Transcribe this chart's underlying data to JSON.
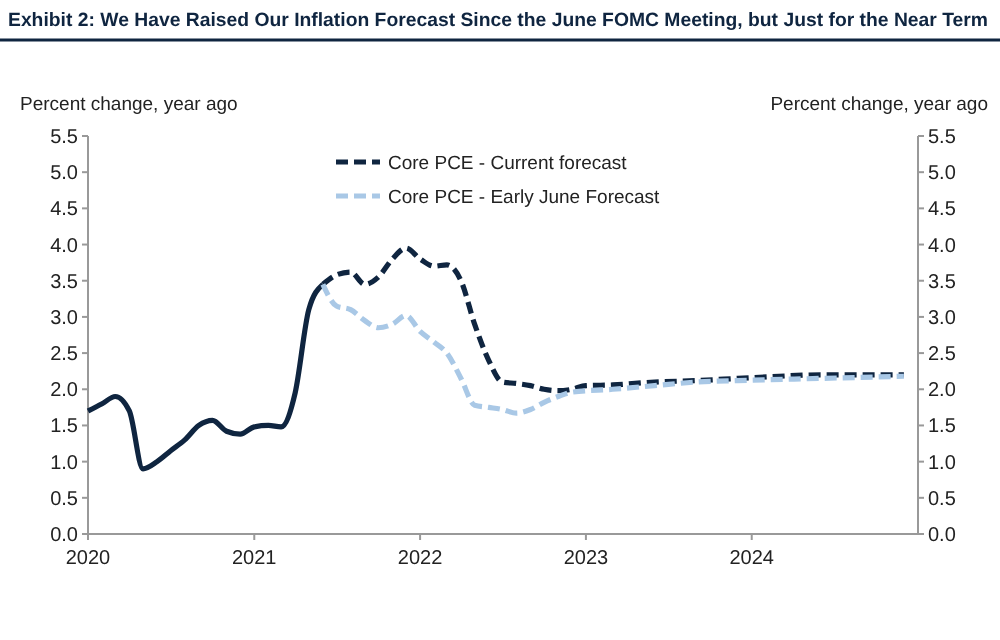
{
  "chart_data": {
    "type": "line",
    "title": "Exhibit 2: We Have Raised Our Inflation Forecast Since the June FOMC Meeting, but Just for the Near Term",
    "ylabel": "Percent change, year ago",
    "y2label": "Percent change, year ago",
    "xlim": [
      "2020",
      "2025"
    ],
    "xticks": [
      "2020",
      "2021",
      "2022",
      "2023",
      "2024"
    ],
    "ylim": [
      0,
      5.5
    ],
    "yticks": [
      {
        "value": 0,
        "label": "0.0"
      },
      0.5,
      {
        "value": 1,
        "label": "1.0"
      },
      1.5,
      {
        "value": 2,
        "label": "2.0"
      },
      2.5,
      {
        "value": 3,
        "label": "3.0"
      },
      3.5,
      {
        "value": 4,
        "label": "4.0"
      },
      4.5,
      {
        "value": 5,
        "label": "5.0"
      },
      5.5
    ],
    "y2lim": [
      0,
      5.5
    ],
    "y2ticks": [
      {
        "value": 0,
        "label": "0.0"
      },
      0.5,
      {
        "value": 1,
        "label": "1.0"
      },
      1.5,
      {
        "value": 2,
        "label": "2.0"
      },
      2.5,
      {
        "value": 3,
        "label": "3.0"
      },
      3.5,
      {
        "value": 4,
        "label": "4.0"
      },
      4.5,
      {
        "value": 5,
        "label": "5.0"
      },
      5.5
    ],
    "grid": false,
    "legend": "top",
    "series": [
      {
        "color": "#0f2540",
        "line_style": "solid",
        "x": [
          "2020-01",
          "2020-02",
          "2020-03",
          "2020-04",
          "2020-05",
          "2020-06",
          "2020-07",
          "2020-08",
          "2020-09",
          "2020-10",
          "2020-11",
          "2020-12",
          "2021-01",
          "2021-02",
          "2021-03",
          "2021-04",
          "2021-05",
          "2021-06"
        ],
        "values": [
          1.7,
          1.8,
          1.9,
          1.7,
          0.9,
          1.0,
          1.15,
          1.3,
          1.5,
          1.57,
          1.42,
          1.38,
          1.48,
          1.5,
          1.48,
          1.95,
          3.1,
          3.45
        ]
      },
      {
        "name": "Core PCE - Current forecast",
        "color": "#0f2540",
        "line_style": "dashed",
        "x": [
          "2021-06",
          "2021-07",
          "2021-08",
          "2021-09",
          "2021-10",
          "2021-11",
          "2021-12",
          "2022-01",
          "2022-02",
          "2022-03",
          "2022-04",
          "2022-05",
          "2022-06",
          "2022-07",
          "2022-08",
          "2022-09",
          "2022-10",
          "2022-11",
          "2022-12",
          "2023-01",
          "2023-03",
          "2023-06",
          "2023-09",
          "2023-12",
          "2024-03",
          "2024-06",
          "2024-09",
          "2024-12"
        ],
        "values": [
          3.45,
          3.58,
          3.62,
          3.45,
          3.55,
          3.8,
          3.95,
          3.8,
          3.7,
          3.72,
          3.5,
          2.9,
          2.4,
          2.1,
          2.08,
          2.05,
          2.0,
          1.98,
          2.0,
          2.05,
          2.06,
          2.1,
          2.12,
          2.15,
          2.18,
          2.2,
          2.2,
          2.2
        ]
      },
      {
        "name": "Core PCE - Early June Forecast",
        "color": "#a9c8e6",
        "line_style": "dashed",
        "x": [
          "2021-06",
          "2021-07",
          "2021-08",
          "2021-09",
          "2021-10",
          "2021-11",
          "2021-12",
          "2022-01",
          "2022-02",
          "2022-03",
          "2022-04",
          "2022-05",
          "2022-06",
          "2022-07",
          "2022-08",
          "2022-09",
          "2022-10",
          "2022-11",
          "2022-12",
          "2023-03",
          "2023-06",
          "2023-09",
          "2023-12",
          "2024-06",
          "2024-12"
        ],
        "values": [
          3.45,
          3.15,
          3.1,
          2.95,
          2.85,
          2.9,
          3.02,
          2.8,
          2.65,
          2.5,
          2.15,
          1.78,
          1.75,
          1.72,
          1.67,
          1.72,
          1.82,
          1.9,
          1.96,
          2.0,
          2.05,
          2.1,
          2.12,
          2.15,
          2.18
        ]
      }
    ]
  }
}
